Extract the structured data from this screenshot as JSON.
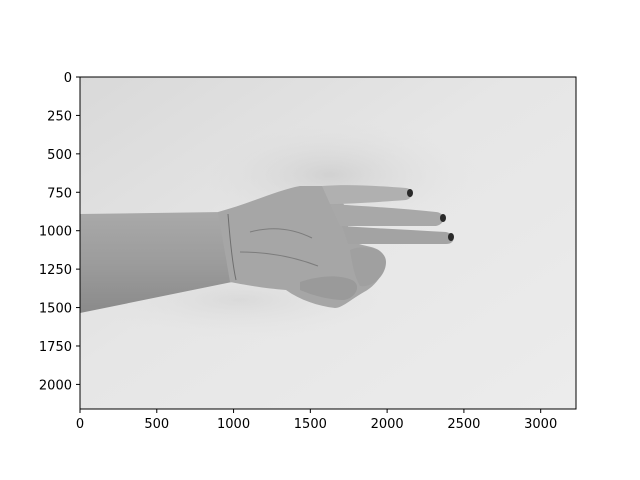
{
  "chart_data": {
    "type": "image",
    "title": "",
    "xlabel": "",
    "ylabel": "",
    "xlim": [
      0,
      3230
    ],
    "ylim": [
      2160,
      0
    ],
    "x_ticks": [
      0,
      500,
      1000,
      1500,
      2000,
      2500,
      3000
    ],
    "y_ticks": [
      0,
      250,
      500,
      750,
      1000,
      1250,
      1500,
      1750,
      2000
    ],
    "x_tick_labels": [
      "0",
      "500",
      "1000",
      "1500",
      "2000",
      "2500",
      "3000"
    ],
    "y_tick_labels": [
      "0",
      "250",
      "500",
      "750",
      "1000",
      "1250",
      "1500",
      "1750",
      "2000"
    ],
    "image_content": "grayscale-photo-of-outstretched-hand",
    "grid": false
  }
}
